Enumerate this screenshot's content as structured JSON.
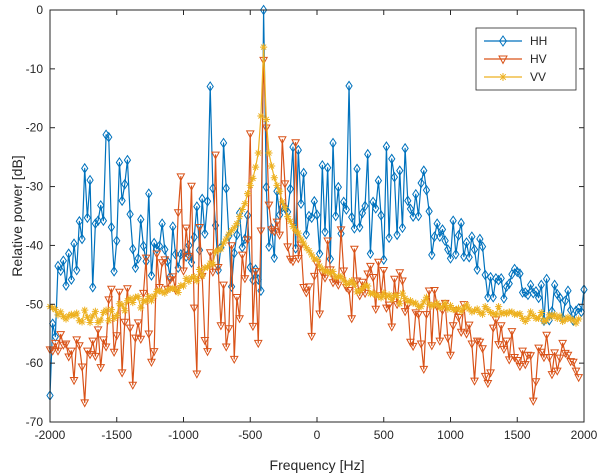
{
  "chart_data": {
    "type": "line",
    "title": "",
    "xlabel": "Frequency [Hz]",
    "ylabel": "Relative power [dB]",
    "xlim": [
      -2000,
      2000
    ],
    "ylim": [
      -70,
      0
    ],
    "x_ticks": [
      -2000,
      -1500,
      -1000,
      -500,
      0,
      500,
      1000,
      1500,
      2000
    ],
    "y_ticks": [
      0,
      -10,
      -20,
      -30,
      -40,
      -50,
      -60,
      -70
    ],
    "grid": false,
    "legend_position": "top-right",
    "x_step": 20,
    "series": [
      {
        "name": "HH",
        "color": "#0072BD",
        "marker": "diamond",
        "values": [
          -65.5,
          -53.3,
          -55.5,
          -43.5,
          -44.3,
          -42.6,
          -46.8,
          -41.4,
          -45.8,
          -39.7,
          -44.2,
          -35.9,
          -38.9,
          -26.9,
          -35.3,
          -28.9,
          -47.1,
          -36.3,
          -35.8,
          -33.2,
          -35.8,
          -21.2,
          -21.6,
          -36.9,
          -44.4,
          -39.2,
          -25.9,
          -32.4,
          -29.6,
          -25.5,
          -34.7,
          -40.6,
          -43.8,
          -42.2,
          -35.6,
          -40.1,
          -42.7,
          -31.2,
          -45.1,
          -39.6,
          -40.6,
          -40.1,
          -36.3,
          -40.7,
          -42.7,
          -45.3,
          -36.8,
          -41.5,
          -43.8,
          -41.5,
          -41.4,
          -41.9,
          -40.0,
          -42.9,
          -38.6,
          -33.4,
          -40.8,
          -32.1,
          -38.0,
          -32.5,
          -13.0,
          -30.3,
          -36.6,
          -44.2,
          -40.3,
          -22.6,
          -30.3,
          -38.4,
          -47.0,
          -41.3,
          -38.2,
          -34.5,
          -40.3,
          -38.9,
          -34.9,
          -43.7,
          -45.9,
          -44.1,
          -45.8,
          -47.7,
          0.0,
          -30.1,
          -40.2,
          -37.1,
          -42.1,
          -30.8,
          -34.8,
          -33.5,
          -33.6,
          -34.3,
          -30.4,
          -23.3,
          -40.5,
          -23.8,
          -32.9,
          -27.7,
          -38.1,
          -35.0,
          -35.3,
          -32.5,
          -34.8,
          -41.4,
          -26.4,
          -37.7,
          -26.8,
          -42.3,
          -22.6,
          -35.0,
          -30.1,
          -38.0,
          -32.6,
          -33.9,
          -12.9,
          -35.2,
          -37.1,
          -27.0,
          -36.9,
          -34.5,
          -33.3,
          -24.5,
          -41.4,
          -32.6,
          -33.7,
          -29.0,
          -34.9,
          -42.4,
          -23.2,
          -38.7,
          -25.3,
          -28.4,
          -38.2,
          -27.3,
          -37.0,
          -23.5,
          -32.4,
          -33.8,
          -35.1,
          -31.3,
          -35.0,
          -29.4,
          -27.3,
          -30.6,
          -34.2,
          -41.6,
          -38.5,
          -36.3,
          -38.5,
          -37.3,
          -39.2,
          -40.7,
          -42.2,
          -35.8,
          -41.5,
          -38.3,
          -36.2,
          -41.9,
          -39.5,
          -42.0,
          -38.5,
          -40.7,
          -44.1,
          -38.9,
          -40.2,
          -45.0,
          -48.8,
          -45.4,
          -48.8,
          -45.6,
          -45.9,
          -45.6,
          -49.0,
          -47.0,
          -46.5,
          -44.9,
          -44.0,
          -44.5,
          -44.8,
          -48.0,
          -48.0,
          -48.4,
          -46.7,
          -48.1,
          -47.8,
          -48.9,
          -46.7,
          -52.8,
          -45.7,
          -52.7,
          -51.2,
          -46.7,
          -48.3,
          -48.9,
          -52.4,
          -49.4,
          -47.7,
          -51.0,
          -52.8,
          -51.1,
          -50.7,
          -51.3,
          -47.5
        ]
      },
      {
        "name": "HV",
        "color": "#D95319",
        "marker": "triangle-down",
        "values": [
          -57.7,
          -57.9,
          -56.6,
          -57.9,
          -55.1,
          -56.9,
          -56.7,
          -58.9,
          -57.9,
          -62.9,
          -56.0,
          -57.0,
          -60.6,
          -66.7,
          -57.9,
          -58.5,
          -56.2,
          -58.8,
          -54.3,
          -60.7,
          -56.0,
          -57.2,
          -49.2,
          -47.4,
          -58.1,
          -55.3,
          -47.9,
          -61.6,
          -53.0,
          -47.3,
          -54.0,
          -63.7,
          -55.7,
          -53.1,
          -55.9,
          -48.1,
          -42.1,
          -55.0,
          -59.8,
          -58.0,
          -41.4,
          -47.1,
          -42.9,
          -42.4,
          -47.4,
          -45.8,
          -45.3,
          -47.5,
          -34.4,
          -28.3,
          -44.3,
          -37.0,
          -41.8,
          -29.9,
          -50.6,
          -61.8,
          -36.9,
          -45.2,
          -56.1,
          -58.0,
          -41.2,
          -44.5,
          -24.6,
          -43.7,
          -53.6,
          -46.7,
          -57.2,
          -54.1,
          -40.0,
          -59.3,
          -48.8,
          -52.4,
          -41.6,
          -45.6,
          -39.0,
          -21.0,
          -53.7,
          -44.4,
          -56.6,
          -37.5,
          -8.5,
          -20.0,
          -33.1,
          -37.3,
          -37.6,
          -36.0,
          -38.2,
          -22.0,
          -29.5,
          -40.2,
          -42.3,
          -42.7,
          -22.5,
          -42.2,
          -39.9,
          -47.1,
          -48.0,
          -47.0,
          -55.4,
          -45.2,
          -43.1,
          -51.6,
          -44.6,
          -45.5,
          -39.2,
          -44.1,
          -46.3,
          -45.8,
          -46.7,
          -37.3,
          -44.3,
          -47.1,
          -47.6,
          -52.4,
          -40.6,
          -46.0,
          -48.5,
          -46.2,
          -48.1,
          -44.8,
          -43.5,
          -45.4,
          -50.8,
          -42.8,
          -48.5,
          -44.2,
          -50.6,
          -50.1,
          -53.8,
          -45.7,
          -50.0,
          -44.6,
          -46.0,
          -51.2,
          -50.1,
          -56.4,
          -57.1,
          -51.4,
          -51.7,
          -56.7,
          -61.0,
          -51.7,
          -47.7,
          -57.0,
          -47.6,
          -50.4,
          -56.2,
          -51.0,
          -49.8,
          -55.7,
          -58.6,
          -53.6,
          -51.0,
          -52.2,
          -54.7,
          -50.0,
          -55.0,
          -53.5,
          -56.7,
          -63.0,
          -56.2,
          -56.4,
          -57.5,
          -62.2,
          -63.4,
          -61.6,
          -54.0,
          -52.6,
          -56.8,
          -53.6,
          -57.6,
          -56.2,
          -59.4,
          -54.6,
          -59.0,
          -59.5,
          -60.5,
          -57.9,
          -60.2,
          -58.6,
          -58.7,
          -66.4,
          -63.1,
          -57.4,
          -58.1,
          -59.0,
          -55.2,
          -59.0,
          -61.9,
          -58.2,
          -61.3,
          -59.1,
          -56.6,
          -58.3,
          -58.6,
          -59.7,
          -59.8,
          -61.3,
          -62.4
        ]
      },
      {
        "name": "VV",
        "color": "#EDB120",
        "marker": "asterisk",
        "values": [
          -50.4,
          -50.6,
          -50.9,
          -51.8,
          -51.3,
          -52.1,
          -52.5,
          -52.0,
          -51.7,
          -51.9,
          -51.5,
          -52.8,
          -53.0,
          -51.0,
          -52.2,
          -53.1,
          -52.0,
          -51.2,
          -53.1,
          -52.7,
          -51.4,
          -51.0,
          -52.8,
          -50.9,
          -52.4,
          -51.9,
          -49.9,
          -50.1,
          -51.1,
          -49.4,
          -49.0,
          -49.7,
          -48.8,
          -48.7,
          -50.6,
          -49.4,
          -49.5,
          -48.7,
          -49.4,
          -48.6,
          -47.8,
          -47.7,
          -47.9,
          -48.1,
          -47.6,
          -47.4,
          -47.3,
          -47.4,
          -48.0,
          -46.8,
          -46.9,
          -45.6,
          -46.1,
          -45.5,
          -45.3,
          -46.0,
          -44.1,
          -45.2,
          -43.8,
          -43.7,
          -43.0,
          -43.2,
          -41.1,
          -40.8,
          -40.6,
          -39.6,
          -38.9,
          -38.1,
          -37.5,
          -37.0,
          -36.3,
          -35.1,
          -33.9,
          -32.9,
          -31.2,
          -29.8,
          -28.6,
          -26.7,
          -24.3,
          -18.0,
          -6.3,
          -18.6,
          -24.3,
          -26.5,
          -28.5,
          -29.8,
          -30.8,
          -32.6,
          -33.6,
          -35.1,
          -35.9,
          -36.8,
          -37.5,
          -37.9,
          -38.9,
          -39.6,
          -40.4,
          -40.9,
          -41.6,
          -42.3,
          -42.4,
          -43.5,
          -44.0,
          -44.4,
          -44.4,
          -44.8,
          -44.4,
          -45.4,
          -45.3,
          -45.3,
          -45.9,
          -46.6,
          -46.4,
          -46.0,
          -46.6,
          -47.9,
          -47.7,
          -47.3,
          -46.8,
          -46.9,
          -48.2,
          -48.1,
          -48.4,
          -48.6,
          -48.9,
          -48.1,
          -48.7,
          -48.4,
          -49.2,
          -48.5,
          -48.5,
          -49.9,
          -48.1,
          -49.0,
          -49.5,
          -49.4,
          -49.8,
          -49.8,
          -50.4,
          -50.4,
          -49.6,
          -48.8,
          -50.0,
          -50.3,
          -50.1,
          -49.8,
          -50.6,
          -50.5,
          -49.8,
          -50.8,
          -50.2,
          -50.9,
          -50.9,
          -50.7,
          -51.2,
          -50.6,
          -50.1,
          -50.8,
          -51.3,
          -51.1,
          -50.8,
          -51.4,
          -51.7,
          -50.4,
          -50.9,
          -51.4,
          -51.6,
          -51.8,
          -50.4,
          -51.6,
          -51.4,
          -51.6,
          -51.3,
          -51.3,
          -51.7,
          -51.7,
          -51.6,
          -52.4,
          -52.9,
          -52.4,
          -51.3,
          -51.9,
          -52.4,
          -52.4,
          -51.4,
          -52.9,
          -52.7,
          -51.8,
          -52.1,
          -51.8,
          -52.4,
          -52.0,
          -52.9,
          -52.6,
          -52.2,
          -52.5,
          -52.7,
          -53.2,
          -52.5
        ]
      }
    ]
  }
}
